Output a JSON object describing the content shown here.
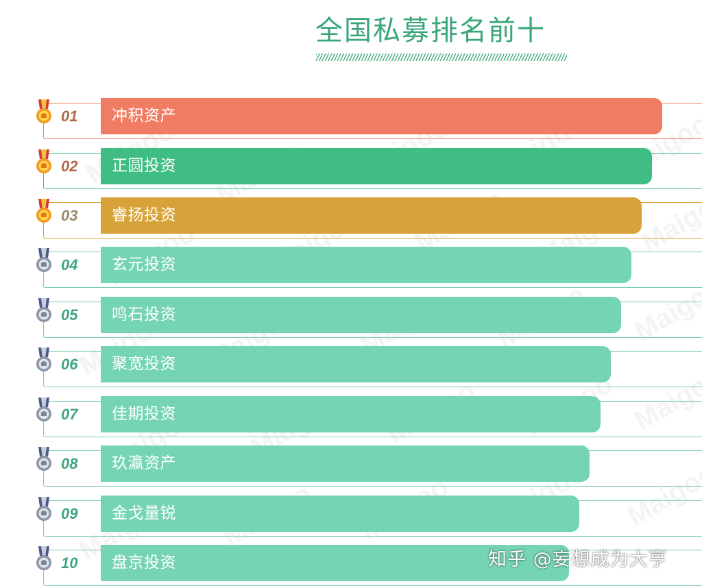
{
  "title": "全国私募排名前十",
  "colors": {
    "title": "#3aa67a",
    "frame": "#79cdb0",
    "first_bar": "#f07c63",
    "second_bar": "#3fbd82",
    "third_bar": "#d8a23a",
    "other_bars": "#74d4b4",
    "gold_rank_text": "#b06a45",
    "silver_rank_text": "#3ea57e"
  },
  "rankings": [
    {
      "rank": "01",
      "name": "冲积资产",
      "medal": "gold-medal-icon",
      "bar_fill": 0.934
    },
    {
      "rank": "02",
      "name": "正圆投资",
      "medal": "gold-medal-icon",
      "bar_fill": 0.917
    },
    {
      "rank": "03",
      "name": "睿扬投资",
      "medal": "gold-medal-icon",
      "bar_fill": 0.9
    },
    {
      "rank": "04",
      "name": "玄元投资",
      "medal": "silver-medal-icon",
      "bar_fill": 0.882
    },
    {
      "rank": "05",
      "name": "鸣石投资",
      "medal": "silver-medal-icon",
      "bar_fill": 0.865
    },
    {
      "rank": "06",
      "name": "聚宽投资",
      "medal": "silver-medal-icon",
      "bar_fill": 0.848
    },
    {
      "rank": "07",
      "name": "佳期投资",
      "medal": "silver-medal-icon",
      "bar_fill": 0.831
    },
    {
      "rank": "08",
      "name": "玖瀛资产",
      "medal": "silver-medal-icon",
      "bar_fill": 0.813
    },
    {
      "rank": "09",
      "name": "金戈量锐",
      "medal": "silver-medal-icon",
      "bar_fill": 0.796
    },
    {
      "rank": "10",
      "name": "盘京投资",
      "medal": "silver-medal-icon",
      "bar_fill": 0.779
    }
  ],
  "watermark_text": "Maigoo",
  "attribution": "知乎 @妄想成为大亨"
}
